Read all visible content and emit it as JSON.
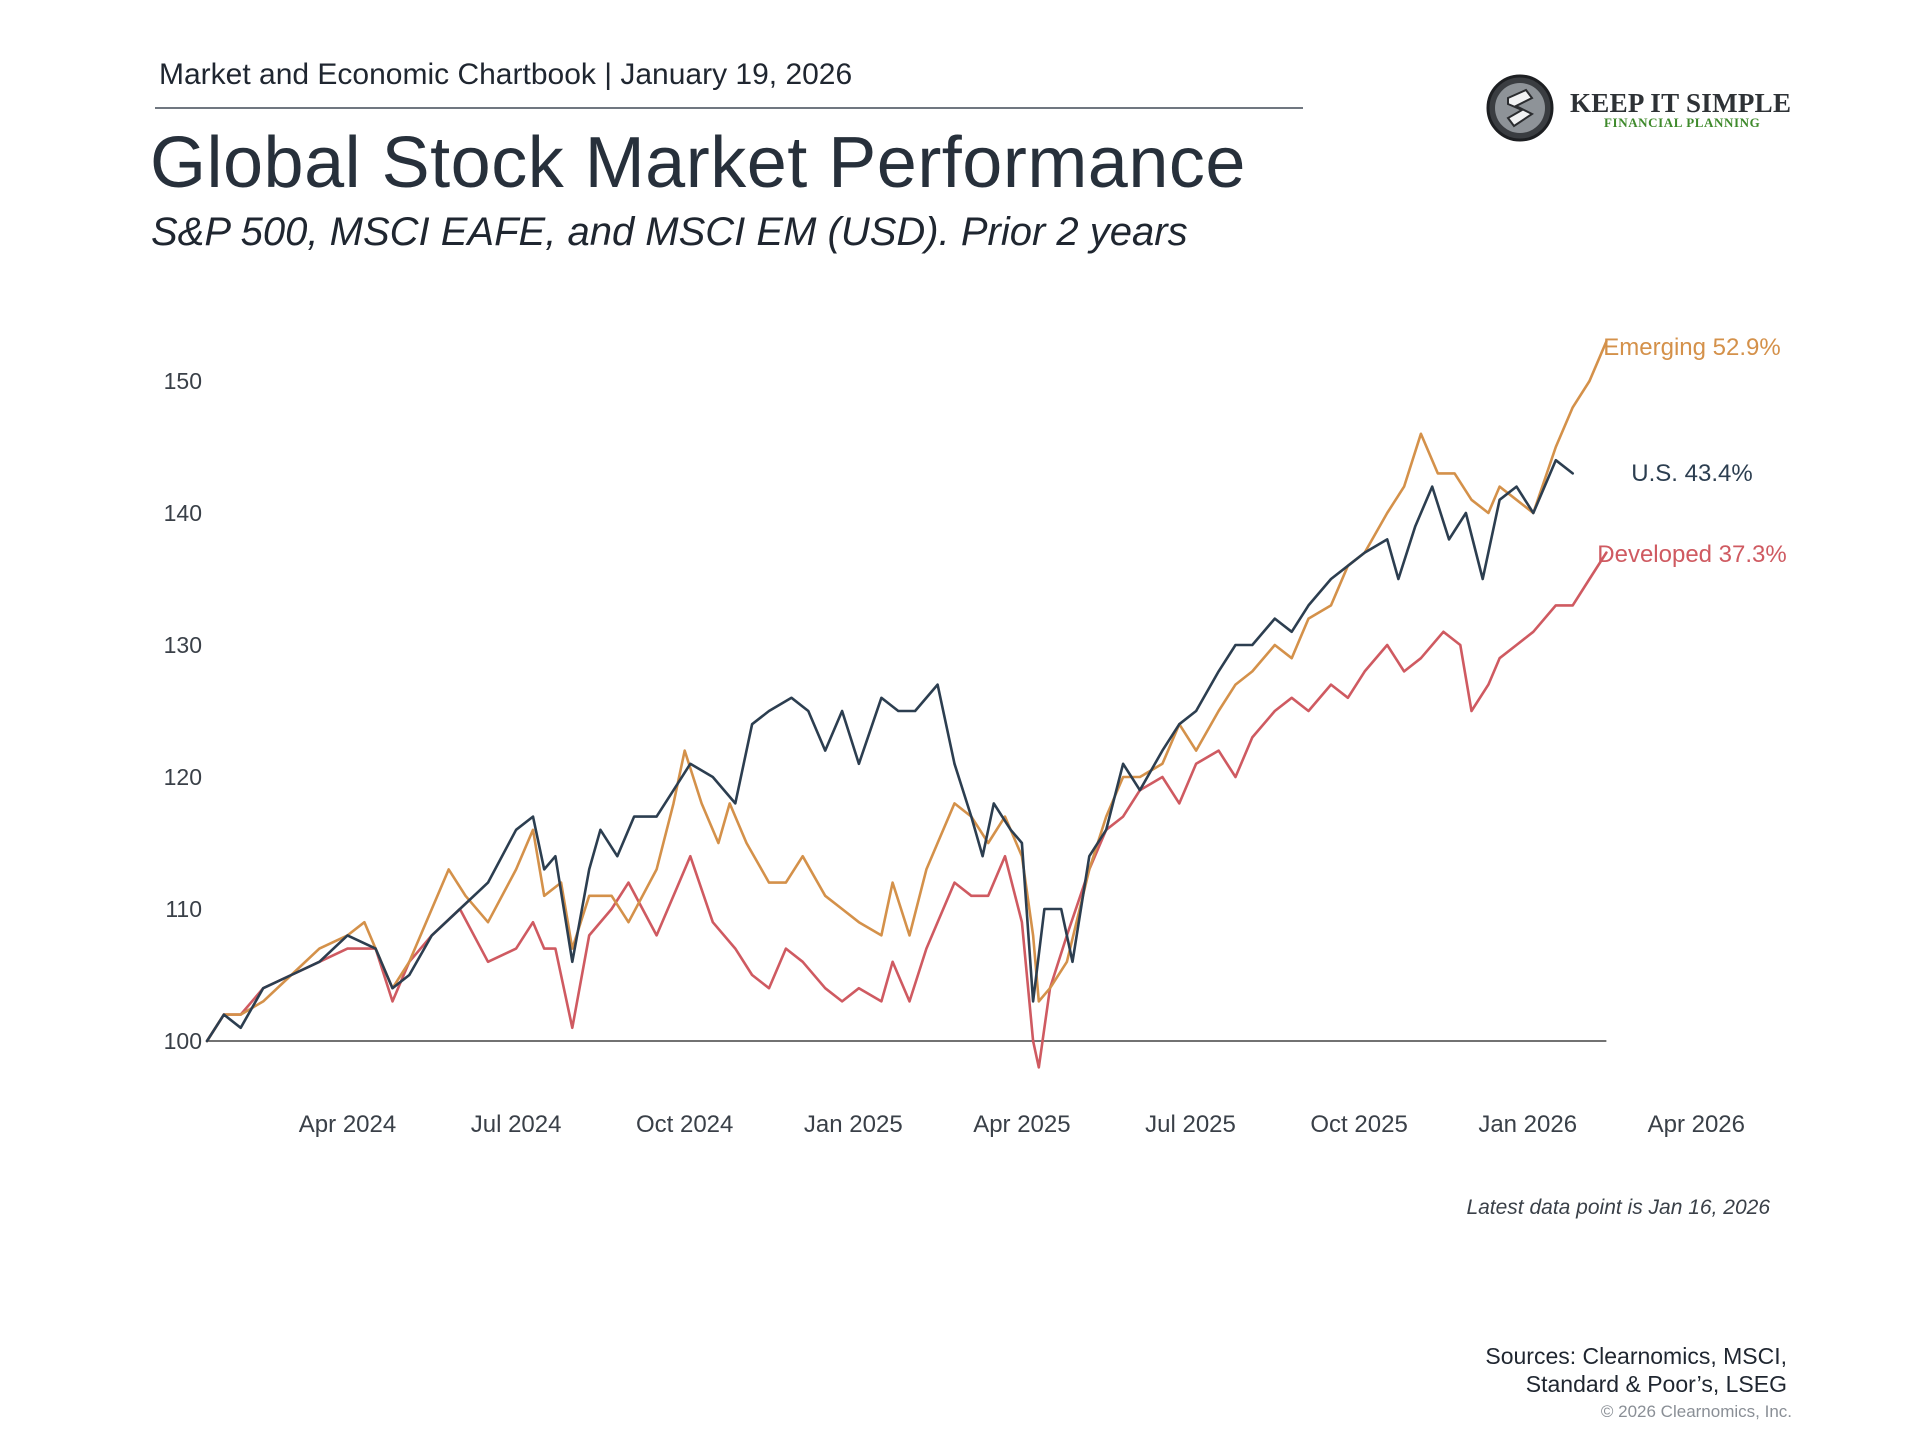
{
  "header": {
    "label": "Market and Economic Chartbook | January 19, 2026",
    "title": "Global Stock Market Performance",
    "subtitle": "S&P 500, MSCI EAFE, and MSCI EM (USD). Prior 2 years"
  },
  "logo": {
    "main": "KEEP IT SIMPLE",
    "sub": "FINANCIAL PLANNING"
  },
  "footnote": "Latest data point is Jan 16, 2026",
  "sources": {
    "line1": "Sources: Clearnomics, MSCI,",
    "line2": "Standard & Poor’s, LSEG"
  },
  "copyright": "© 2026 Clearnomics, Inc.",
  "colors": {
    "us": "#2c3e50",
    "emerging": "#d4914a",
    "developed": "#cf5a61",
    "axis": "#444444",
    "tick_text": "#3a4048"
  },
  "chart_data": {
    "type": "line",
    "title": "Global Stock Market Performance",
    "xlabel": "",
    "ylabel": "",
    "xlim": [
      0,
      27.0
    ],
    "ylim": [
      100,
      155
    ],
    "x_ticks": [
      {
        "label": "Apr 2024",
        "x": 2.5
      },
      {
        "label": "Jul 2024",
        "x": 5.5
      },
      {
        "label": "Oct 2024",
        "x": 8.5
      },
      {
        "label": "Jan 2025",
        "x": 11.5
      },
      {
        "label": "Apr 2025",
        "x": 14.5
      },
      {
        "label": "Jul 2025",
        "x": 17.5
      },
      {
        "label": "Oct 2025",
        "x": 20.5
      },
      {
        "label": "Jan 2026",
        "x": 23.5
      },
      {
        "label": "Apr 2026",
        "x": 26.5
      }
    ],
    "y_ticks": [
      100,
      110,
      120,
      130,
      140,
      150
    ],
    "baseline": 100,
    "series": [
      {
        "name": "U.S.",
        "end_label": "U.S. 43.4%",
        "color_key": "us",
        "points": [
          [
            0,
            100
          ],
          [
            0.3,
            102
          ],
          [
            0.6,
            101
          ],
          [
            1.0,
            104
          ],
          [
            1.5,
            105
          ],
          [
            2.0,
            106
          ],
          [
            2.5,
            108
          ],
          [
            3.0,
            107
          ],
          [
            3.3,
            104
          ],
          [
            3.6,
            105
          ],
          [
            4.0,
            108
          ],
          [
            4.5,
            110
          ],
          [
            5.0,
            112
          ],
          [
            5.5,
            116
          ],
          [
            5.8,
            117
          ],
          [
            6.0,
            113
          ],
          [
            6.2,
            114
          ],
          [
            6.5,
            106
          ],
          [
            6.8,
            113
          ],
          [
            7.0,
            116
          ],
          [
            7.3,
            114
          ],
          [
            7.6,
            117
          ],
          [
            8.0,
            117
          ],
          [
            8.3,
            119
          ],
          [
            8.6,
            121
          ],
          [
            9.0,
            120
          ],
          [
            9.4,
            118
          ],
          [
            9.7,
            124
          ],
          [
            10.0,
            125
          ],
          [
            10.4,
            126
          ],
          [
            10.7,
            125
          ],
          [
            11.0,
            122
          ],
          [
            11.3,
            125
          ],
          [
            11.6,
            121
          ],
          [
            12.0,
            126
          ],
          [
            12.3,
            125
          ],
          [
            12.6,
            125
          ],
          [
            13.0,
            127
          ],
          [
            13.3,
            121
          ],
          [
            13.6,
            117
          ],
          [
            13.8,
            114
          ],
          [
            14.0,
            118
          ],
          [
            14.3,
            116
          ],
          [
            14.5,
            115
          ],
          [
            14.7,
            103
          ],
          [
            14.9,
            110
          ],
          [
            15.2,
            110
          ],
          [
            15.4,
            106
          ],
          [
            15.7,
            114
          ],
          [
            16.0,
            116
          ],
          [
            16.3,
            121
          ],
          [
            16.6,
            119
          ],
          [
            17.0,
            122
          ],
          [
            17.3,
            124
          ],
          [
            17.6,
            125
          ],
          [
            18.0,
            128
          ],
          [
            18.3,
            130
          ],
          [
            18.6,
            130
          ],
          [
            19.0,
            132
          ],
          [
            19.3,
            131
          ],
          [
            19.6,
            133
          ],
          [
            20.0,
            135
          ],
          [
            20.3,
            136
          ],
          [
            20.6,
            137
          ],
          [
            21.0,
            138
          ],
          [
            21.2,
            135
          ],
          [
            21.5,
            139
          ],
          [
            21.8,
            142
          ],
          [
            22.1,
            138
          ],
          [
            22.4,
            140
          ],
          [
            22.7,
            135
          ],
          [
            23.0,
            141
          ],
          [
            23.3,
            142
          ],
          [
            23.6,
            140
          ],
          [
            24.0,
            144
          ],
          [
            24.3,
            143
          ]
        ]
      },
      {
        "name": "Emerging",
        "end_label": "Emerging 52.9%",
        "color_key": "emerging",
        "points": [
          [
            0,
            100
          ],
          [
            0.3,
            102
          ],
          [
            0.6,
            102
          ],
          [
            1.0,
            103
          ],
          [
            1.5,
            105
          ],
          [
            2.0,
            107
          ],
          [
            2.5,
            108
          ],
          [
            2.8,
            109
          ],
          [
            3.0,
            107
          ],
          [
            3.3,
            104
          ],
          [
            3.6,
            106
          ],
          [
            4.0,
            110
          ],
          [
            4.3,
            113
          ],
          [
            4.6,
            111
          ],
          [
            5.0,
            109
          ],
          [
            5.5,
            113
          ],
          [
            5.8,
            116
          ],
          [
            6.0,
            111
          ],
          [
            6.3,
            112
          ],
          [
            6.5,
            107
          ],
          [
            6.8,
            111
          ],
          [
            7.2,
            111
          ],
          [
            7.5,
            109
          ],
          [
            8.0,
            113
          ],
          [
            8.3,
            118
          ],
          [
            8.5,
            122
          ],
          [
            8.8,
            118
          ],
          [
            9.1,
            115
          ],
          [
            9.3,
            118
          ],
          [
            9.6,
            115
          ],
          [
            10.0,
            112
          ],
          [
            10.3,
            112
          ],
          [
            10.6,
            114
          ],
          [
            11.0,
            111
          ],
          [
            11.3,
            110
          ],
          [
            11.6,
            109
          ],
          [
            12.0,
            108
          ],
          [
            12.2,
            112
          ],
          [
            12.5,
            108
          ],
          [
            12.8,
            113
          ],
          [
            13.0,
            115
          ],
          [
            13.3,
            118
          ],
          [
            13.6,
            117
          ],
          [
            13.9,
            115
          ],
          [
            14.2,
            117
          ],
          [
            14.5,
            114
          ],
          [
            14.7,
            108
          ],
          [
            14.8,
            103
          ],
          [
            15.0,
            104
          ],
          [
            15.3,
            106
          ],
          [
            15.7,
            113
          ],
          [
            16.0,
            117
          ],
          [
            16.3,
            120
          ],
          [
            16.6,
            120
          ],
          [
            17.0,
            121
          ],
          [
            17.3,
            124
          ],
          [
            17.6,
            122
          ],
          [
            18.0,
            125
          ],
          [
            18.3,
            127
          ],
          [
            18.6,
            128
          ],
          [
            19.0,
            130
          ],
          [
            19.3,
            129
          ],
          [
            19.6,
            132
          ],
          [
            20.0,
            133
          ],
          [
            20.3,
            136
          ],
          [
            20.6,
            137
          ],
          [
            21.0,
            140
          ],
          [
            21.3,
            142
          ],
          [
            21.6,
            146
          ],
          [
            21.9,
            143
          ],
          [
            22.2,
            143
          ],
          [
            22.5,
            141
          ],
          [
            22.8,
            140
          ],
          [
            23.0,
            142
          ],
          [
            23.3,
            141
          ],
          [
            23.6,
            140
          ],
          [
            24.0,
            145
          ],
          [
            24.3,
            148
          ],
          [
            24.6,
            150
          ],
          [
            24.9,
            153
          ]
        ]
      },
      {
        "name": "Developed",
        "end_label": "Developed 37.3%",
        "color_key": "developed",
        "points": [
          [
            0,
            100
          ],
          [
            0.3,
            102
          ],
          [
            0.6,
            102
          ],
          [
            1.0,
            104
          ],
          [
            1.5,
            105
          ],
          [
            2.0,
            106
          ],
          [
            2.5,
            107
          ],
          [
            3.0,
            107
          ],
          [
            3.3,
            103
          ],
          [
            3.6,
            106
          ],
          [
            4.0,
            108
          ],
          [
            4.5,
            110
          ],
          [
            5.0,
            106
          ],
          [
            5.5,
            107
          ],
          [
            5.8,
            109
          ],
          [
            6.0,
            107
          ],
          [
            6.2,
            107
          ],
          [
            6.5,
            101
          ],
          [
            6.8,
            108
          ],
          [
            7.2,
            110
          ],
          [
            7.5,
            112
          ],
          [
            8.0,
            108
          ],
          [
            8.3,
            111
          ],
          [
            8.6,
            114
          ],
          [
            9.0,
            109
          ],
          [
            9.4,
            107
          ],
          [
            9.7,
            105
          ],
          [
            10.0,
            104
          ],
          [
            10.3,
            107
          ],
          [
            10.6,
            106
          ],
          [
            11.0,
            104
          ],
          [
            11.3,
            103
          ],
          [
            11.6,
            104
          ],
          [
            12.0,
            103
          ],
          [
            12.2,
            106
          ],
          [
            12.5,
            103
          ],
          [
            12.8,
            107
          ],
          [
            13.0,
            109
          ],
          [
            13.3,
            112
          ],
          [
            13.6,
            111
          ],
          [
            13.9,
            111
          ],
          [
            14.2,
            114
          ],
          [
            14.5,
            109
          ],
          [
            14.7,
            100
          ],
          [
            14.8,
            98
          ],
          [
            15.0,
            104
          ],
          [
            15.3,
            108
          ],
          [
            15.7,
            113
          ],
          [
            16.0,
            116
          ],
          [
            16.3,
            117
          ],
          [
            16.6,
            119
          ],
          [
            17.0,
            120
          ],
          [
            17.3,
            118
          ],
          [
            17.6,
            121
          ],
          [
            18.0,
            122
          ],
          [
            18.3,
            120
          ],
          [
            18.6,
            123
          ],
          [
            19.0,
            125
          ],
          [
            19.3,
            126
          ],
          [
            19.6,
            125
          ],
          [
            20.0,
            127
          ],
          [
            20.3,
            126
          ],
          [
            20.6,
            128
          ],
          [
            21.0,
            130
          ],
          [
            21.3,
            128
          ],
          [
            21.6,
            129
          ],
          [
            22.0,
            131
          ],
          [
            22.3,
            130
          ],
          [
            22.5,
            125
          ],
          [
            22.8,
            127
          ],
          [
            23.0,
            129
          ],
          [
            23.3,
            130
          ],
          [
            23.6,
            131
          ],
          [
            24.0,
            133
          ],
          [
            24.3,
            133
          ],
          [
            24.6,
            135
          ],
          [
            24.9,
            137
          ]
        ]
      }
    ]
  }
}
